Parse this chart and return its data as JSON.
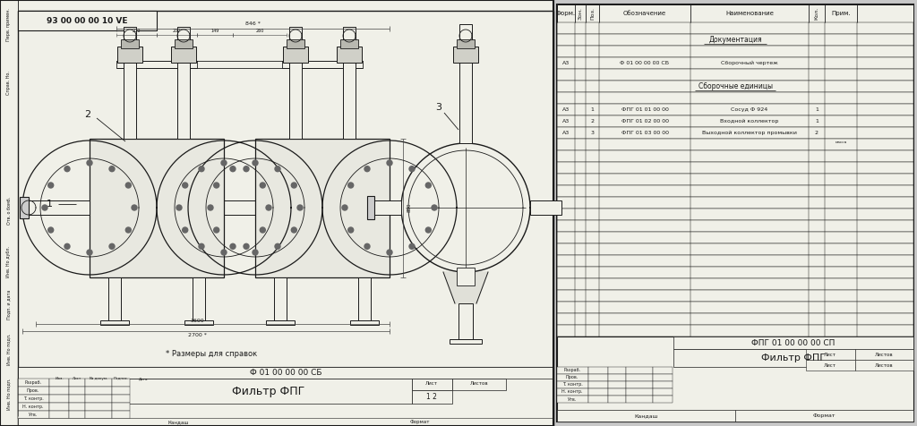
{
  "bg_color": "#c8c8c8",
  "paper_color": "#f0f0e8",
  "line_color": "#1a1a1a",
  "drawing_title": "93 00 00 00 10 VE",
  "note_text": "* Размеры для справок",
  "code_sb": "Ф 01 00 00 00 СБ",
  "filter_name": "Фильтр ФПГ",
  "sheet_num": "1 2",
  "roles": [
    "Изм.",
    "Лист",
    "№ док.",
    "Подп.",
    "Дата",
    "Разраб.",
    "Пров.",
    "Т. контр.",
    "Н. контр.",
    "Утв."
  ],
  "spec_title": "ФПГ 01 00 00 00 СП",
  "spec_name": "Фильтр ФПГ",
  "spec_headers": [
    "Форм.",
    "Зон.",
    "Поз.",
    "Обозначение",
    "Наименование",
    "Кол.",
    "Прим."
  ],
  "sec_doc": "Документация",
  "doc_row_fmt": "А3",
  "doc_row_code": "Ф 01 00 00 00 СБ",
  "doc_row_name": "Сборочный чертеж",
  "sec_assy": "Сборочные единицы",
  "items": [
    [
      "А3",
      "1",
      "ФПГ 01 01 00 00",
      "Сосуд Ф 924",
      "1"
    ],
    [
      "А3",
      "2",
      "ФПГ 01 02 00 00",
      "Входной коллектор",
      "1"
    ],
    [
      "А3",
      "3",
      "ФПГ 01 03 00 00",
      "Выходной коллектор промывки",
      "2"
    ]
  ],
  "left_labels": [
    "Перв. примен.",
    "Справ. Но.",
    "Отв. о бомб.",
    "Инв. Но дубл.",
    "Подп. и дата",
    "Инв. Но подл.",
    "Инв. Но подп."
  ],
  "bottom_labels": [
    "Кандаш",
    "Формат"
  ]
}
